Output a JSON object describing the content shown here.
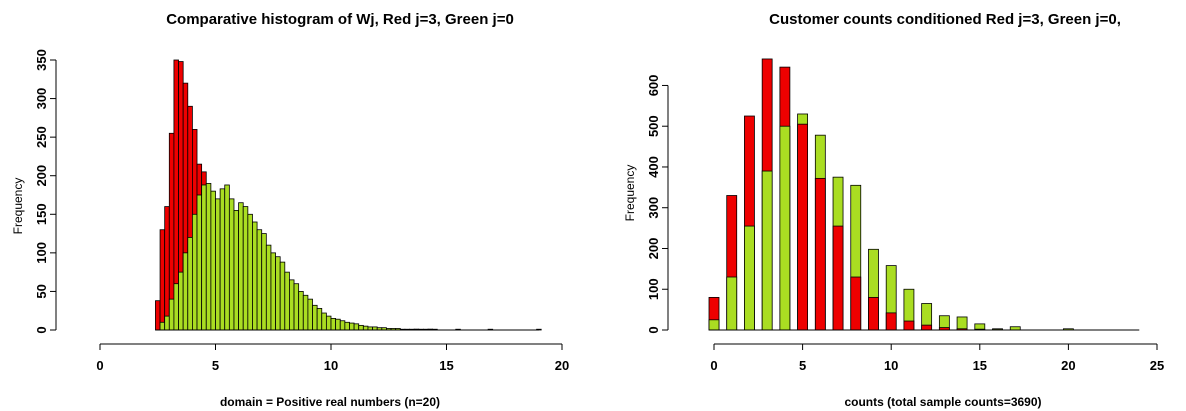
{
  "chart_data": [
    {
      "type": "histogram",
      "title": "Comparative histogram of Wj, Red j=3, Green j=0",
      "xlabel": "domain = Positive real numbers (n=20)",
      "ylabel": "Frequency",
      "xlim": [
        0,
        20
      ],
      "ylim": [
        0,
        350
      ],
      "xticks": [
        "0",
        "5",
        "10",
        "15",
        "20"
      ],
      "yticks": [
        "0",
        "50",
        "100",
        "150",
        "200",
        "250",
        "300",
        "350"
      ],
      "grid": false,
      "bin_width": 0.2,
      "series": [
        {
          "name": "Red j=3",
          "color": "#ee0000",
          "bin_start": 2.4,
          "values": [
            38,
            130,
            160,
            255,
            350,
            348,
            320,
            290,
            260,
            215,
            205,
            170,
            155,
            120,
            100,
            85,
            70,
            55,
            42,
            33,
            24,
            18,
            14,
            10,
            10,
            8,
            7,
            6,
            6,
            5,
            5,
            4,
            4,
            3,
            3,
            2,
            2,
            2,
            1,
            1
          ]
        },
        {
          "name": "Green j=0",
          "color": "#aadd22",
          "bin_start": 2.6,
          "values": [
            10,
            18,
            40,
            60,
            75,
            100,
            120,
            150,
            175,
            188,
            190,
            180,
            170,
            183,
            188,
            170,
            155,
            165,
            160,
            150,
            140,
            130,
            125,
            110,
            100,
            95,
            88,
            75,
            65,
            60,
            50,
            45,
            40,
            32,
            28,
            22,
            18,
            15,
            14,
            12,
            10,
            9,
            8,
            6,
            5,
            4,
            4,
            3,
            3,
            2,
            2,
            2,
            1,
            1,
            1,
            1,
            1,
            1,
            1,
            1
          ]
        }
      ],
      "outliers": [
        {
          "x": 13.6,
          "y": 1
        },
        {
          "x": 14.2,
          "y": 1
        },
        {
          "x": 15.4,
          "y": 1
        },
        {
          "x": 16.8,
          "y": 1
        },
        {
          "x": 18.9,
          "y": 1
        }
      ]
    },
    {
      "type": "bar",
      "title": "Customer counts conditioned Red j=3, Green j=0,",
      "xlabel": "counts  (total sample counts=3690)",
      "ylabel": "Frequency",
      "xlim": [
        0,
        25
      ],
      "ylim": [
        0,
        660
      ],
      "xticks": [
        "0",
        "5",
        "10",
        "15",
        "20",
        "25"
      ],
      "yticks": [
        "0",
        "100",
        "200",
        "300",
        "400",
        "500",
        "600"
      ],
      "grid": false,
      "categories": [
        0,
        1,
        2,
        3,
        4,
        5,
        6,
        7,
        8,
        9,
        10,
        11,
        12,
        13,
        14,
        15,
        16,
        17,
        18,
        19,
        20
      ],
      "series": [
        {
          "name": "Red j=3",
          "color": "#ee0000",
          "values": [
            80,
            330,
            525,
            665,
            645,
            505,
            372,
            255,
            130,
            80,
            42,
            22,
            12,
            6,
            3,
            2,
            1,
            0,
            0,
            0,
            0
          ]
        },
        {
          "name": "Green j=0",
          "color": "#aadd22",
          "values": [
            25,
            130,
            255,
            390,
            500,
            530,
            478,
            375,
            355,
            198,
            158,
            100,
            65,
            35,
            32,
            15,
            3,
            8,
            0,
            0,
            3
          ]
        }
      ]
    }
  ]
}
